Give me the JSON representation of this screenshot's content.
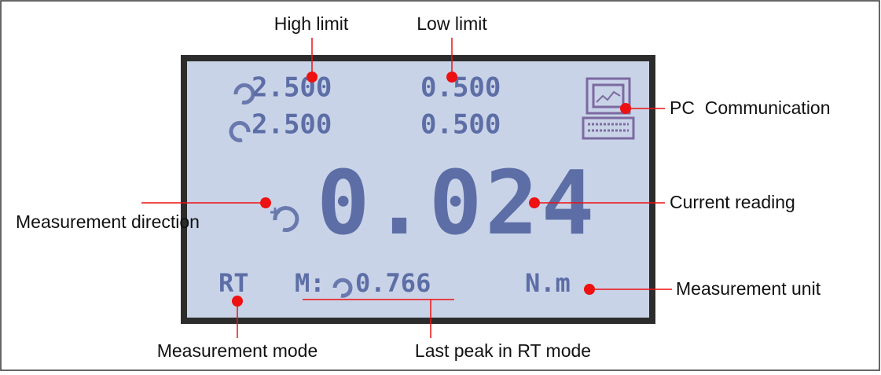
{
  "labels": {
    "high_limit": "High limit",
    "low_limit": "Low limit",
    "pc": "PC  Communication",
    "current": "Current reading",
    "direction": "Measurement direction",
    "unit": "Measurement unit",
    "mode": "Measurement mode",
    "last_peak": "Last peak in RT mode"
  },
  "display": {
    "rows": [
      [
        "2.500",
        "0.500"
      ],
      [
        "2.500",
        "0.500"
      ]
    ],
    "reading": "0.024",
    "mode": "RT",
    "peak_prefix": "M:",
    "peak": "0.766",
    "unit": "N.m"
  }
}
